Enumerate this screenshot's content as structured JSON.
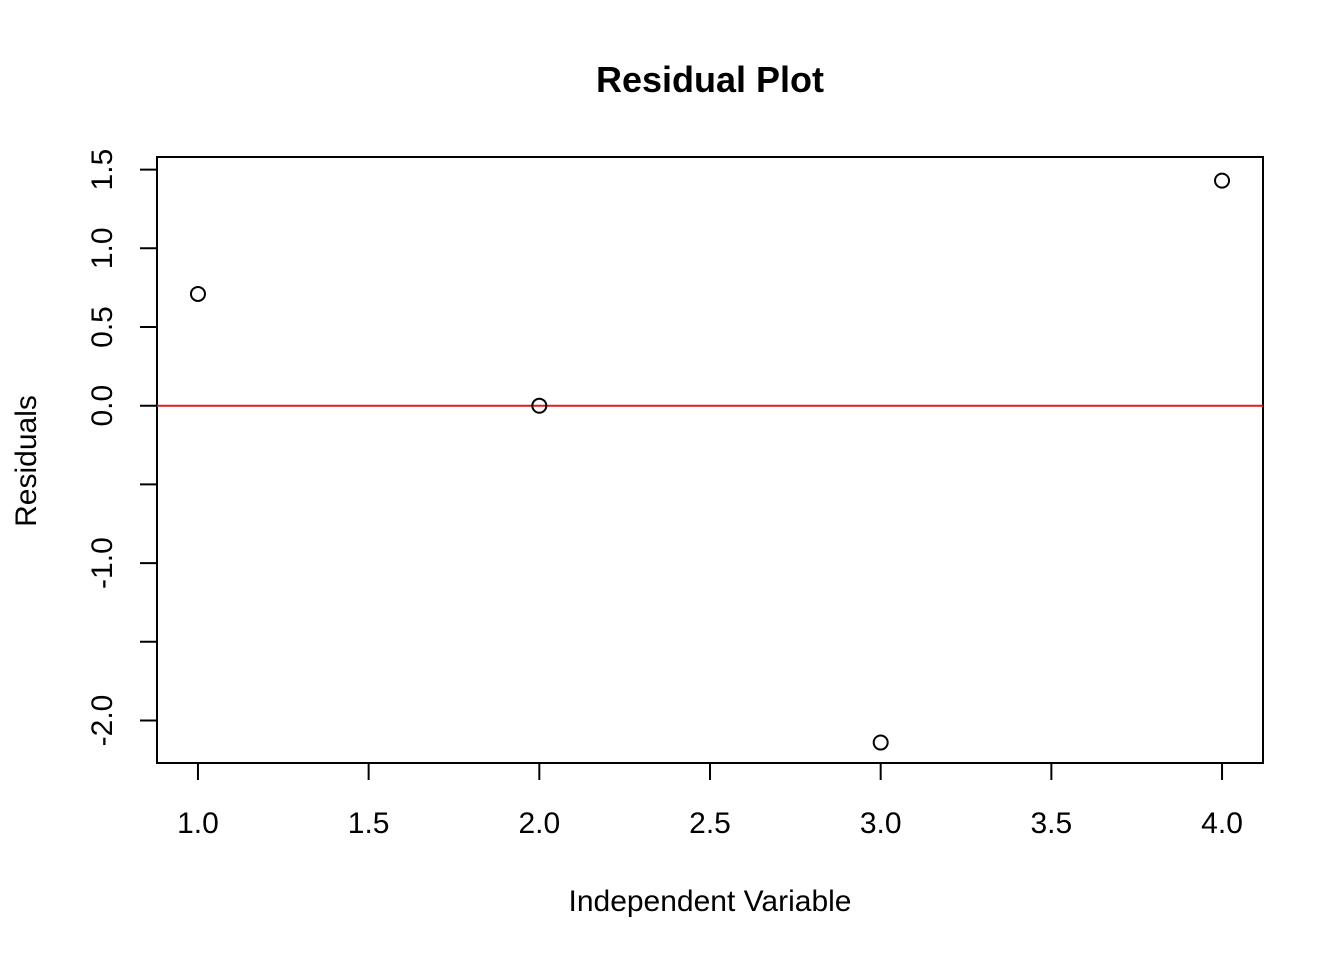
{
  "chart_data": {
    "type": "scatter",
    "title": "Residual Plot",
    "xlabel": "Independent Variable",
    "ylabel": "Residuals",
    "xlim": [
      0.88,
      4.12
    ],
    "ylim": [
      -2.27,
      1.58
    ],
    "x_ticks": [
      1.0,
      1.5,
      2.0,
      2.5,
      3.0,
      3.5,
      4.0
    ],
    "x_tick_labels": [
      "1.0",
      "1.5",
      "2.0",
      "2.5",
      "3.0",
      "3.5",
      "4.0"
    ],
    "y_ticks": [
      -2.0,
      -1.5,
      -1.0,
      -0.5,
      0.0,
      0.5,
      1.0,
      1.5
    ],
    "y_tick_labels": [
      "-2.0",
      "",
      "-1.0",
      "",
      "0.0",
      "0.5",
      "1.0",
      "1.5"
    ],
    "points": [
      {
        "x": 1.0,
        "y": 0.71
      },
      {
        "x": 2.0,
        "y": 0.0
      },
      {
        "x": 3.0,
        "y": -2.14
      },
      {
        "x": 4.0,
        "y": 1.43
      }
    ],
    "reference_line": {
      "y": 0,
      "color": "#e41a1c"
    },
    "marker": "open-circle",
    "grid": false,
    "legend": "none"
  }
}
